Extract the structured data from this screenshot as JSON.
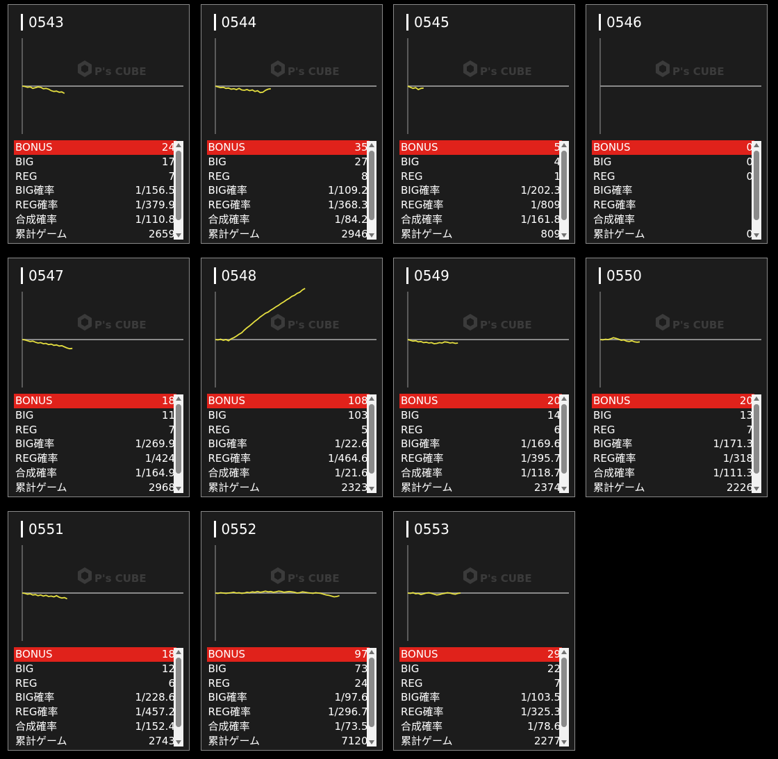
{
  "colors": {
    "bonus_bg": "#e0221b",
    "graph_line": "#e6e040",
    "panel_bg": "#1c1c1c",
    "page_bg": "#000000"
  },
  "watermark": {
    "brand": "P's CUBE",
    "icon": "cube-logo-icon"
  },
  "row_labels": [
    "BONUS",
    "BIG",
    "REG",
    "BIG確率",
    "REG確率",
    "合成確率",
    "累計ゲーム"
  ],
  "machines": [
    {
      "id": "0543",
      "stats": [
        "24",
        "17",
        "7",
        "1/156.5",
        "1/379.9",
        "1/110.8",
        "2659"
      ],
      "graph": [
        0,
        -1,
        -3,
        -2,
        -6,
        -4,
        -2,
        -3,
        -7,
        -6,
        -8,
        -12,
        -14,
        -13,
        -16,
        -15,
        -19
      ]
    },
    {
      "id": "0544",
      "stats": [
        "35",
        "27",
        "8",
        "1/109.2",
        "1/368.3",
        "1/84.2",
        "2946"
      ],
      "graph": [
        0,
        -2,
        -4,
        -3,
        -6,
        -5,
        -8,
        -7,
        -9,
        -6,
        -10,
        -11,
        -9,
        -12,
        -10,
        -14,
        -12,
        -17,
        -16,
        -11,
        -8,
        -7
      ]
    },
    {
      "id": "0545",
      "stats": [
        "5",
        "4",
        "1",
        "1/202.3",
        "1/809",
        "1/161.8",
        "809"
      ],
      "graph": [
        0,
        -3,
        -6,
        -4,
        -9,
        -6,
        -5
      ]
    },
    {
      "id": "0546",
      "stats": [
        "0",
        "0",
        "0",
        "",
        "",
        "",
        "0"
      ],
      "graph": []
    },
    {
      "id": "0547",
      "stats": [
        "18",
        "11",
        "7",
        "1/269.9",
        "1/424",
        "1/164.9",
        "2968"
      ],
      "graph": [
        0,
        -1,
        -3,
        -5,
        -4,
        -7,
        -9,
        -8,
        -11,
        -10,
        -13,
        -12,
        -15,
        -14,
        -17,
        -16,
        -19,
        -22,
        -24,
        -23
      ]
    },
    {
      "id": "0548",
      "stats": [
        "108",
        "103",
        "5",
        "1/22.6",
        "1/464.6",
        "1/21.6",
        "2323"
      ],
      "graph": [
        0,
        -1,
        1,
        -2,
        0,
        -3,
        2,
        5,
        9,
        14,
        18,
        25,
        31,
        36,
        42,
        48,
        53,
        59,
        64,
        69,
        72,
        77,
        81,
        86,
        90,
        95,
        99,
        104,
        108,
        113,
        116,
        121,
        124,
        130,
        134
      ]
    },
    {
      "id": "0549",
      "stats": [
        "20",
        "14",
        "6",
        "1/169.6",
        "1/395.7",
        "1/118.7",
        "2374"
      ],
      "graph": [
        0,
        -2,
        -4,
        -3,
        -6,
        -5,
        -8,
        -7,
        -9,
        -8,
        -11,
        -10,
        -8,
        -9,
        -6,
        -7,
        -9,
        -8,
        -10,
        -9
      ]
    },
    {
      "id": "0550",
      "stats": [
        "20",
        "13",
        "7",
        "1/171.3",
        "1/318",
        "1/111.3",
        "2226"
      ],
      "graph": [
        0,
        -1,
        1,
        0,
        2,
        5,
        3,
        1,
        -2,
        -1,
        -4,
        -5,
        -3,
        -6,
        -7,
        -6
      ]
    },
    {
      "id": "0551",
      "stats": [
        "18",
        "12",
        "6",
        "1/228.6",
        "1/457.2",
        "1/152.4",
        "2743"
      ],
      "graph": [
        0,
        -1,
        -3,
        -2,
        -5,
        -4,
        -7,
        -5,
        -8,
        -6,
        -9,
        -8,
        -10,
        -7,
        -11,
        -13,
        -12,
        -15
      ]
    },
    {
      "id": "0552",
      "stats": [
        "97",
        "73",
        "24",
        "1/97.6",
        "1/296.7",
        "1/73.5",
        "7120"
      ],
      "graph": [
        0,
        -1,
        1,
        0,
        -1,
        0,
        1,
        2,
        0,
        1,
        -1,
        0,
        2,
        1,
        3,
        2,
        4,
        2,
        3,
        5,
        3,
        4,
        2,
        3,
        5,
        4,
        2,
        3,
        4,
        3,
        2,
        0,
        1,
        3,
        2,
        1,
        0,
        -1,
        1,
        0,
        -1,
        -3,
        -5,
        -6,
        -8,
        -10,
        -9,
        -7
      ]
    },
    {
      "id": "0553",
      "stats": [
        "29",
        "22",
        "7",
        "1/103.5",
        "1/325.3",
        "1/78.6",
        "2277"
      ],
      "graph": [
        0,
        -1,
        1,
        -2,
        -1,
        -4,
        -2,
        0,
        1,
        -1,
        -3,
        -5,
        -4,
        -2,
        -1,
        1,
        0,
        -2,
        -3,
        -1,
        0
      ]
    }
  ]
}
